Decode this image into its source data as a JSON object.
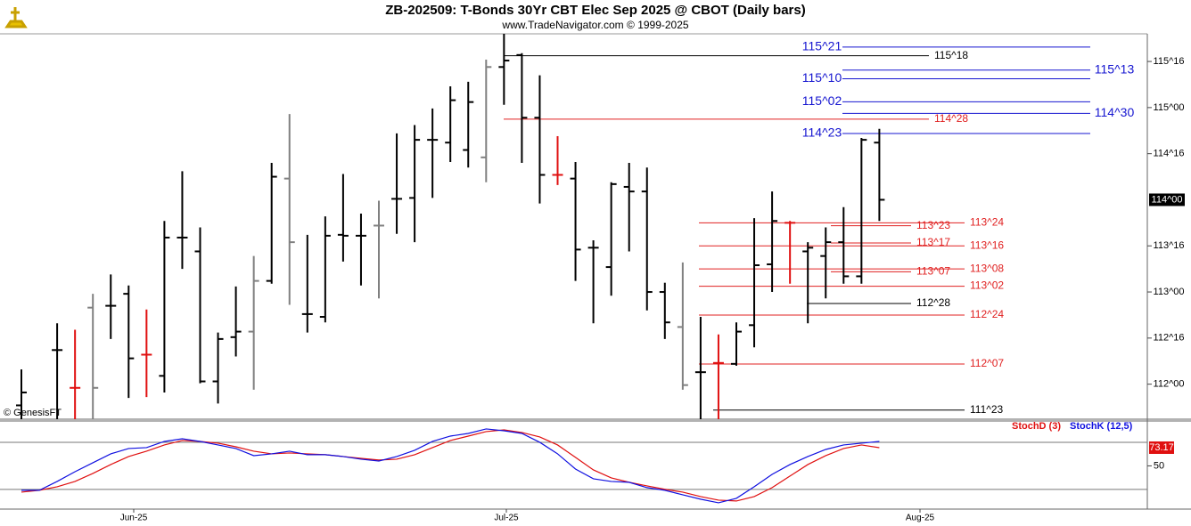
{
  "chart_data": [
    {
      "type": "ohlc",
      "title": "ZB-202509:  T-Bonds 30Yr CBT Elec Sep 2025 @ CBOT  (Daily bars)",
      "subtitle": "www.TradeNavigator.com © 1999-2025",
      "watermark": "© GenesisFT",
      "open": [
        111.77,
        null,
        112.37,
        111.96,
        112.83,
        112.85,
        112.98,
        112.32,
        112.09,
        113.59,
        113.44,
        112.03,
        112.51,
        112.57,
        113.12,
        114.23,
        112.76,
        112.73,
        113.62,
        113.61,
        113.72,
        114.01,
        114.02,
        114.65,
        114.62,
        114.54,
        114.46,
        115.44,
        115.57,
        114.89,
        114.27,
        114.23,
        113.48,
        113.27,
        114.14,
        114.09,
        113.0,
        112.62,
        112.13,
        112.23,
        112.22,
        112.64,
        113.3,
        113.75,
        113.44,
        113.39,
        113.54,
        113.17,
        114.62
      ],
      "high": [
        112.16,
        null,
        112.66,
        112.59,
        112.98,
        113.19,
        113.07,
        112.81,
        113.77,
        114.31,
        113.7,
        112.56,
        113.06,
        113.39,
        114.4,
        114.93,
        113.62,
        113.82,
        114.28,
        113.85,
        113.99,
        114.72,
        114.81,
        114.99,
        115.23,
        115.28,
        115.52,
        115.8,
        115.59,
        115.35,
        114.69,
        114.41,
        113.56,
        114.19,
        114.4,
        114.35,
        113.1,
        113.32,
        112.73,
        112.54,
        112.67,
        113.8,
        114.09,
        113.77,
        113.54,
        113.7,
        113.92,
        114.67,
        114.77
      ],
      "low": [
        111.62,
        null,
        111.62,
        111.62,
        111.62,
        112.49,
        111.85,
        111.86,
        111.91,
        113.25,
        112.01,
        111.79,
        112.3,
        111.94,
        113.09,
        112.86,
        112.56,
        112.67,
        113.33,
        113.07,
        112.93,
        113.63,
        113.54,
        114.02,
        114.41,
        114.35,
        114.19,
        115.03,
        114.4,
        113.96,
        114.16,
        113.12,
        112.66,
        112.96,
        113.44,
        112.8,
        112.49,
        111.94,
        111.62,
        111.62,
        112.2,
        112.4,
        113.0,
        113.09,
        112.66,
        112.93,
        113.09,
        113.09,
        113.77
      ],
      "close": [
        111.91,
        null,
        112.37,
        111.96,
        111.96,
        112.85,
        112.28,
        112.32,
        113.59,
        113.59,
        112.03,
        112.49,
        112.57,
        113.12,
        114.25,
        113.54,
        112.76,
        113.61,
        113.61,
        113.61,
        113.72,
        114.01,
        114.65,
        114.65,
        115.08,
        115.06,
        115.44,
        115.51,
        114.89,
        114.27,
        114.27,
        113.46,
        113.48,
        114.17,
        114.09,
        113.0,
        112.67,
        111.99,
        112.13,
        112.23,
        112.57,
        113.29,
        113.77,
        113.75,
        113.48,
        113.54,
        113.17,
        114.65,
        114.0
      ],
      "colors": [
        "#000000",
        "#000000",
        "#000000",
        "#e01010",
        "#808080",
        "#000000",
        "#000000",
        "#e01010",
        "#000000",
        "#000000",
        "#000000",
        "#000000",
        "#000000",
        "#808080",
        "#000000",
        "#808080",
        "#000000",
        "#000000",
        "#000000",
        "#000000",
        "#808080",
        "#000000",
        "#000000",
        "#000000",
        "#000000",
        "#000000",
        "#808080",
        "#000000",
        "#000000",
        "#000000",
        "#e01010",
        "#000000",
        "#000000",
        "#000000",
        "#000000",
        "#000000",
        "#000000",
        "#808080",
        "#000000",
        "#e01010",
        "#000000",
        "#000000",
        "#000000",
        "#e01010",
        "#000000",
        "#000000",
        "#000000",
        "#000000",
        "#000000"
      ],
      "ylim": [
        111.62,
        115.8
      ],
      "yticks": [
        {
          "value": 112,
          "label": "112^00"
        },
        {
          "value": 112.5,
          "label": "112^16"
        },
        {
          "value": 113,
          "label": "113^00"
        },
        {
          "value": 113.5,
          "label": "113^16"
        },
        {
          "value": 114.5,
          "label": "114^16"
        },
        {
          "value": 115,
          "label": "115^00"
        },
        {
          "value": 115.5,
          "label": "115^16"
        }
      ],
      "last_price": {
        "value": 114,
        "label": "114^00"
      },
      "x_labels": [
        "Jun-25",
        "Jul-25",
        "Aug-25"
      ],
      "annotations": [
        {
          "label": "115^21",
          "value": 115.65625,
          "color": "#1515d0"
        },
        {
          "label": "115^18",
          "value": 115.5625,
          "color": "#000000"
        },
        {
          "label": "115^13",
          "value": 115.40625,
          "color": "#1515d0"
        },
        {
          "label": "115^10",
          "value": 115.3125,
          "color": "#1515d0"
        },
        {
          "label": "115^02",
          "value": 115.0625,
          "color": "#1515d0"
        },
        {
          "label": "114^30",
          "value": 114.9375,
          "color": "#1515d0"
        },
        {
          "label": "114^28",
          "value": 114.875,
          "color": "#e02020"
        },
        {
          "label": "114^23",
          "value": 114.71875,
          "color": "#1515d0"
        },
        {
          "label": "113^24",
          "value": 113.75,
          "color": "#e02020"
        },
        {
          "label": "113^23",
          "value": 113.71875,
          "color": "#e02020"
        },
        {
          "label": "113^17",
          "value": 113.53125,
          "color": "#e02020"
        },
        {
          "label": "113^16",
          "value": 113.5,
          "color": "#e02020"
        },
        {
          "label": "113^07",
          "value": 113.21875,
          "color": "#e02020"
        },
        {
          "label": "113^08",
          "value": 113.25,
          "color": "#e02020"
        },
        {
          "label": "113^02",
          "value": 113.0625,
          "color": "#e02020"
        },
        {
          "label": "112^28",
          "value": 112.875,
          "color": "#000000"
        },
        {
          "label": "112^24",
          "value": 112.75,
          "color": "#e02020"
        },
        {
          "label": "112^07",
          "value": 112.21875,
          "color": "#e02020"
        },
        {
          "label": "111^23",
          "value": 111.71875,
          "color": "#000000"
        }
      ]
    },
    {
      "type": "line",
      "series": [
        {
          "name": "StochD (3)",
          "color": "#e01010",
          "values": [
            16.6,
            18.9,
            23.4,
            30.2,
            40.4,
            51.7,
            61.9,
            68.7,
            76.6,
            82.3,
            81.1,
            78.9,
            74.3,
            68.7,
            65.3,
            66.4,
            65.3,
            64.2,
            61.9,
            59.6,
            57.4,
            58.5,
            64.2,
            73.2,
            82.3,
            87.9,
            93.6,
            95.8,
            92.5,
            86.8,
            76.6,
            60.8,
            44.9,
            34.7,
            29.1,
            24.5,
            20.2,
            16.6,
            10.9,
            6.4,
            5.3,
            10.9,
            22.3,
            37.0,
            51.7,
            63.0,
            72.1,
            76.6,
            73.17
          ]
        },
        {
          "name": "StochK (12,5)",
          "color": "#1010e0",
          "values": [
            18.9,
            18.9,
            30.2,
            42.6,
            54.0,
            65.3,
            72.1,
            73.2,
            81.1,
            84.5,
            81.1,
            76.6,
            72.1,
            63.0,
            65.3,
            68.7,
            64.2,
            64.2,
            61.9,
            58.5,
            56.2,
            61.9,
            69.8,
            81.1,
            87.9,
            91.3,
            97.0,
            94.7,
            91.3,
            80.0,
            65.3,
            46.0,
            33.6,
            30.2,
            29.1,
            22.3,
            18.9,
            13.2,
            7.6,
            3.0,
            8.7,
            23.4,
            39.2,
            51.7,
            61.9,
            70.9,
            76.6,
            78.9,
            81.1
          ]
        }
      ],
      "ylim": [
        -5,
        106
      ],
      "yticks": [
        50
      ],
      "levels": [
        20,
        80
      ]
    }
  ]
}
